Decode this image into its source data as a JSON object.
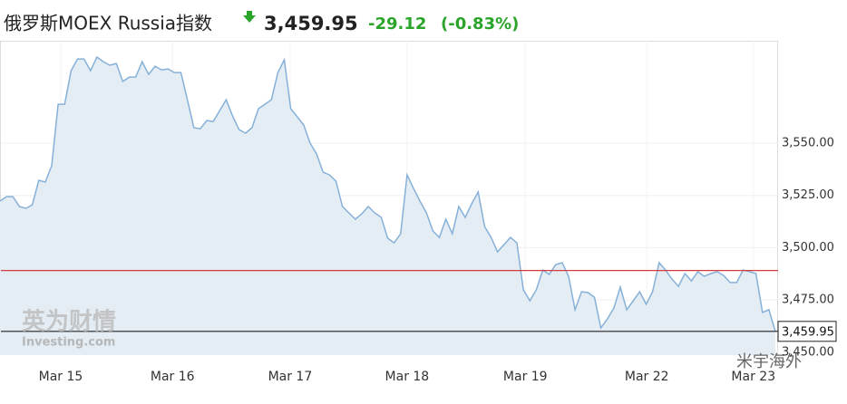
{
  "header": {
    "title": "俄罗斯MOEX Russia指数",
    "price": "3,459.95",
    "change": "-29.12",
    "change_pct": "(-0.83%)"
  },
  "watermarks": [
    "英为财情",
    "Investing.com",
    "米宇海外"
  ],
  "chart_data": {
    "type": "area",
    "x": [
      0,
      1,
      2,
      3,
      4,
      5,
      6,
      7,
      8,
      9,
      10,
      11,
      12,
      13,
      14,
      15,
      16,
      17,
      18,
      19,
      20,
      21,
      22,
      23,
      24,
      25,
      26,
      27,
      28,
      29,
      30,
      31,
      32,
      33,
      34,
      35,
      36,
      37,
      38,
      39,
      40,
      41,
      42,
      43,
      44,
      45,
      46,
      47,
      48,
      49,
      50,
      51,
      52,
      53,
      54,
      55,
      56,
      57,
      58,
      59,
      60,
      61,
      62,
      63,
      64,
      65,
      66,
      67,
      68,
      69,
      70,
      71,
      72,
      73,
      74,
      75,
      76,
      77,
      78,
      79,
      80,
      81,
      82,
      83,
      84,
      85,
      86,
      87,
      88,
      89,
      90,
      91,
      92,
      93,
      94,
      95,
      96,
      97,
      98,
      99,
      100,
      101,
      102,
      103,
      104,
      105,
      106,
      107,
      108,
      109,
      110,
      111,
      112,
      113,
      114,
      115,
      116,
      117,
      118,
      119,
      120
    ],
    "values": [
      3522.3,
      3524.4,
      3524.4,
      3519.7,
      3518.8,
      3520.5,
      3532.2,
      3531.4,
      3539.2,
      3568.6,
      3568.6,
      3584.7,
      3590.3,
      3590.3,
      3584.7,
      3591.2,
      3589.0,
      3587.3,
      3588.1,
      3579.5,
      3581.6,
      3581.6,
      3589.0,
      3582.9,
      3586.8,
      3585.1,
      3585.5,
      3583.8,
      3583.8,
      3570.8,
      3557.4,
      3556.9,
      3560.8,
      3560.4,
      3565.6,
      3570.8,
      3563.0,
      3556.5,
      3554.8,
      3557.4,
      3566.5,
      3568.6,
      3570.8,
      3583.8,
      3589.9,
      3566.5,
      3562.6,
      3558.7,
      3550,
      3544.8,
      3536.1,
      3534.8,
      3531.8,
      3519.7,
      3516.6,
      3513.6,
      3516.2,
      3519.7,
      3516.6,
      3514.5,
      3504.5,
      3502.3,
      3506.7,
      3534.8,
      3528.3,
      3522.3,
      3516.6,
      3508.0,
      3504.9,
      3513.6,
      3506.7,
      3519.7,
      3514.5,
      3521.0,
      3526.6,
      3510.1,
      3504.9,
      3498.0,
      3501.5,
      3504.9,
      3502.3,
      3479.8,
      3474.6,
      3479.8,
      3489.3,
      3487.2,
      3491.9,
      3492.8,
      3486.3,
      3470.3,
      3478.9,
      3478.5,
      3476.3,
      3461.6,
      3465.9,
      3471.1,
      3481.1,
      3470.3,
      3474.6,
      3478.9,
      3472.9,
      3478.9,
      3492.8,
      3489.3,
      3485.0,
      3481.5,
      3487.6,
      3484.1,
      3488.5,
      3486.3,
      3487.6,
      3488.5,
      3486.7,
      3483.3,
      3483.3,
      3489.3,
      3488.5,
      3487.6,
      3469.0,
      3470.3,
      3459.95
    ],
    "color": "#86b0d8",
    "fill_color": "#e4edf4",
    "xlim": [
      0,
      120
    ],
    "xticks": [
      {
        "value": 9.4,
        "label": "Mar 15"
      },
      {
        "value": 26.7,
        "label": "Mar 16"
      },
      {
        "value": 44.9,
        "label": "Mar 17"
      },
      {
        "value": 63.0,
        "label": "Mar 18"
      },
      {
        "value": 81.3,
        "label": "Mar 19"
      },
      {
        "value": 100.1,
        "label": "Mar 22"
      },
      {
        "value": 116.6,
        "label": "Mar 23"
      }
    ],
    "ylim": [
      3448.6,
      3599
    ],
    "yticks": [
      {
        "value": 3450,
        "label": "3,450.00"
      },
      {
        "value": 3475,
        "label": "3,475.00"
      },
      {
        "value": 3500,
        "label": "3,500.00"
      },
      {
        "value": 3525,
        "label": "3,525.00"
      },
      {
        "value": 3550,
        "label": "3,550.00"
      }
    ],
    "previous_close": {
      "value": 3489.07,
      "color": "#d33c3c"
    },
    "last_line": {
      "value": 3459.95,
      "label": "3,459.95",
      "color": "#222222"
    }
  }
}
